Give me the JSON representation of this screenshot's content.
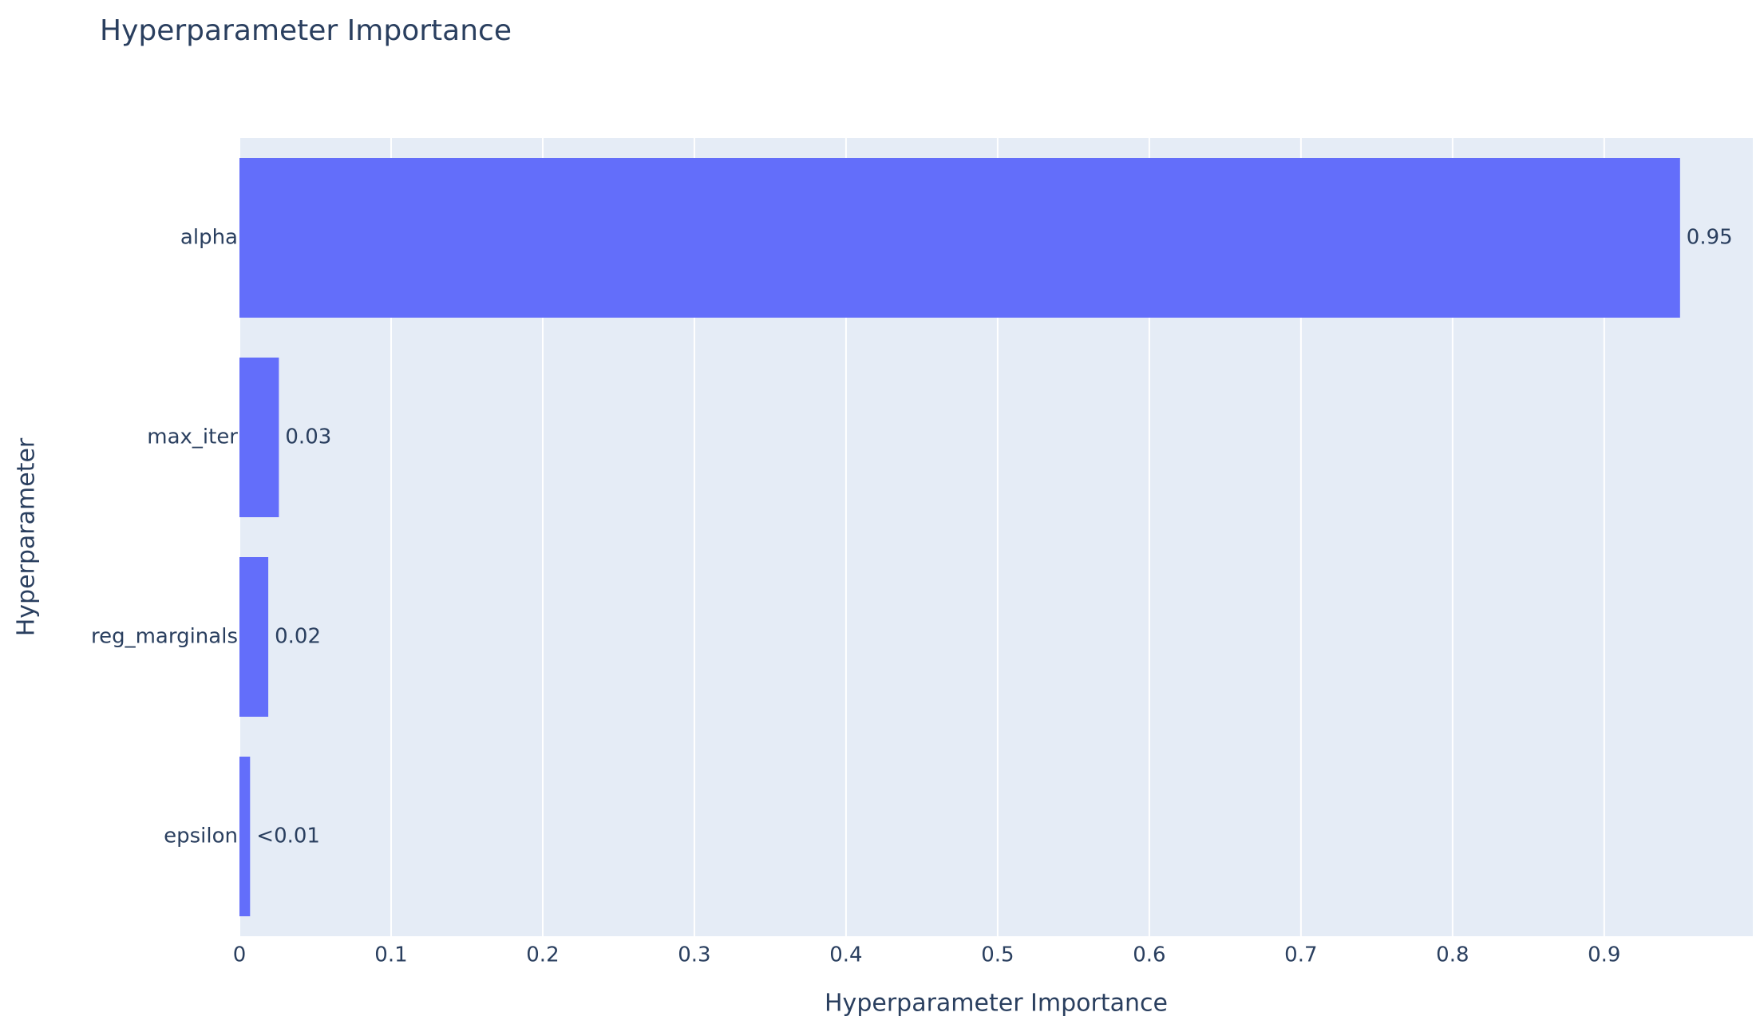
{
  "chart_data": {
    "type": "bar",
    "orientation": "horizontal",
    "title": "Hyperparameter Importance",
    "x_label": "Hyperparameter Importance",
    "y_label": "Hyperparameter",
    "categories": [
      "alpha",
      "max_iter",
      "reg_marginals",
      "epsilon"
    ],
    "values": [
      0.95,
      0.026,
      0.019,
      0.007
    ],
    "value_labels": [
      "0.95",
      "0.03",
      "0.02",
      "<0.01"
    ],
    "color": "#636efa",
    "xlim": [
      0,
      0.998
    ],
    "xticks": [
      0,
      0.1,
      0.2,
      0.3,
      0.4,
      0.5,
      0.6,
      0.7,
      0.8,
      0.9
    ],
    "grid": true
  }
}
